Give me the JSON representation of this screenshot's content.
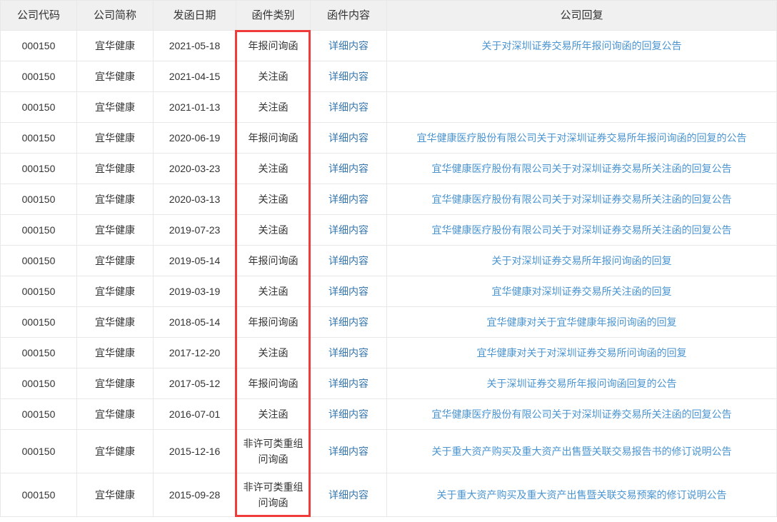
{
  "colors": {
    "header_bg": "#f0f0f0",
    "cell_border": "#e8e8e8",
    "body_text": "#333333",
    "detail_link": "#3476ad",
    "reply_link": "#4a94d0",
    "highlight_border": "#f03b3b"
  },
  "table": {
    "headers": {
      "company_code": "公司代码",
      "company_name": "公司简称",
      "send_date": "发函日期",
      "letter_type": "函件类别",
      "letter_content": "函件内容",
      "company_reply": "公司回复"
    },
    "detail_label": "详细内容",
    "rows": [
      {
        "code": "000150",
        "name": "宜华健康",
        "date": "2021-05-18",
        "type": "年报问询函",
        "reply": "关于对深圳证券交易所年报问询函的回复公告"
      },
      {
        "code": "000150",
        "name": "宜华健康",
        "date": "2021-04-15",
        "type": "关注函",
        "reply": ""
      },
      {
        "code": "000150",
        "name": "宜华健康",
        "date": "2021-01-13",
        "type": "关注函",
        "reply": ""
      },
      {
        "code": "000150",
        "name": "宜华健康",
        "date": "2020-06-19",
        "type": "年报问询函",
        "reply": "宜华健康医疗股份有限公司关于对深圳证券交易所年报问询函的回复的公告"
      },
      {
        "code": "000150",
        "name": "宜华健康",
        "date": "2020-03-23",
        "type": "关注函",
        "reply": "宜华健康医疗股份有限公司关于对深圳证券交易所关注函的回复公告"
      },
      {
        "code": "000150",
        "name": "宜华健康",
        "date": "2020-03-13",
        "type": "关注函",
        "reply": "宜华健康医疗股份有限公司关于对深圳证券交易所关注函的回复公告"
      },
      {
        "code": "000150",
        "name": "宜华健康",
        "date": "2019-07-23",
        "type": "关注函",
        "reply": "宜华健康医疗股份有限公司关于对深圳证券交易所关注函的回复公告"
      },
      {
        "code": "000150",
        "name": "宜华健康",
        "date": "2019-05-14",
        "type": "年报问询函",
        "reply": "关于对深圳证券交易所年报问询函的回复"
      },
      {
        "code": "000150",
        "name": "宜华健康",
        "date": "2019-03-19",
        "type": "关注函",
        "reply": "宜华健康对深圳证券交易所关注函的回复"
      },
      {
        "code": "000150",
        "name": "宜华健康",
        "date": "2018-05-14",
        "type": "年报问询函",
        "reply": "宜华健康对关于宜华健康年报问询函的回复"
      },
      {
        "code": "000150",
        "name": "宜华健康",
        "date": "2017-12-20",
        "type": "关注函",
        "reply": "宜华健康对关于对深圳证券交易所问询函的回复"
      },
      {
        "code": "000150",
        "name": "宜华健康",
        "date": "2017-05-12",
        "type": "年报问询函",
        "reply": "关于深圳证券交易所年报问询函回复的公告"
      },
      {
        "code": "000150",
        "name": "宜华健康",
        "date": "2016-07-01",
        "type": "关注函",
        "reply": "宜华健康医疗股份有限公司关于对深圳证券交易所关注函的回复公告"
      },
      {
        "code": "000150",
        "name": "宜华健康",
        "date": "2015-12-16",
        "type": "非许可类重组问询函",
        "reply": "关于重大资产购买及重大资产出售暨关联交易报告书的修订说明公告"
      },
      {
        "code": "000150",
        "name": "宜华健康",
        "date": "2015-09-28",
        "type": "非许可类重组问询函",
        "reply": "关于重大资产购买及重大资产出售暨关联交易预案的修订说明公告"
      }
    ]
  }
}
